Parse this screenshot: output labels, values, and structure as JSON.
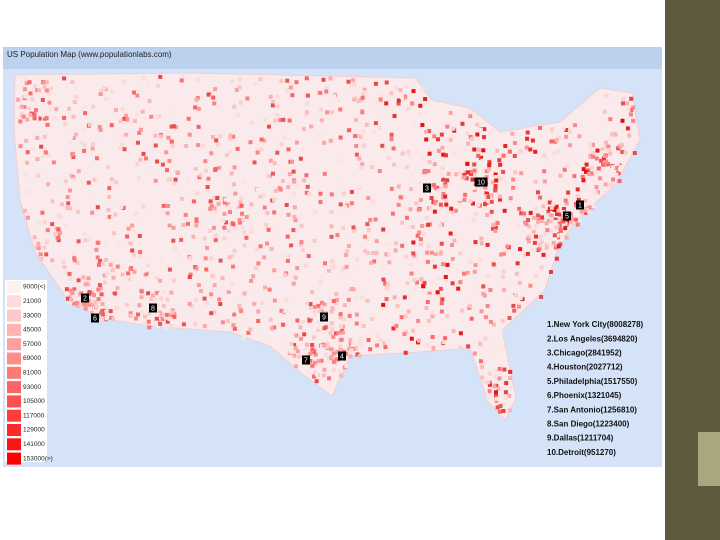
{
  "title": "US Population Map (www.populationlabs.com)",
  "legend": [
    "9000(<)",
    "21000",
    "33000",
    "45000",
    "57000",
    "69000",
    "81000",
    "93000",
    "105000",
    "117000",
    "129000",
    "141000",
    "153000(>)"
  ],
  "markers": [
    "1",
    "2",
    "3",
    "4",
    "5",
    "6",
    "7",
    "8",
    "9",
    "10"
  ],
  "cities": [
    "1.New York City(8008278)",
    "2.Los Angeles(3694820)",
    "3.Chicago(2841952)",
    "4.Houston(2027712)",
    "5.Philadelphia(1517550)",
    "6.Phoenix(1321045)",
    "7.San Antonio(1256810)",
    "8.San Diego(1223400)",
    "9.Dallas(1211704)",
    "10.Detroit(951270)"
  ]
}
